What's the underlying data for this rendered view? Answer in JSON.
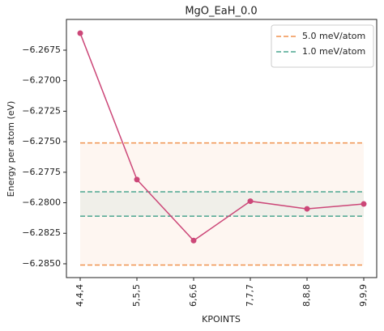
{
  "chart_data": {
    "type": "line",
    "title": "MgO_EaH_0.0",
    "x_label": "KPOINTS",
    "y_label": "Energy per atom (eV)",
    "categories": [
      "4,4,4",
      "5,5,5",
      "6,6,6",
      "7,7,7",
      "8,8,8",
      "9,9,9"
    ],
    "series": [
      {
        "color": "#cc4778",
        "values": [
          -6.26611,
          -6.2781,
          -6.2831,
          -6.27987,
          -6.2805,
          -6.2801
        ]
      }
    ],
    "reference_lines": [
      {
        "name": "5.0 meV/atom",
        "color": "#f0924e",
        "values": [
          -6.2751,
          -6.2851
        ]
      },
      {
        "name": "1.0 meV/atom",
        "color": "#4aa58f",
        "values": [
          -6.2791,
          -6.2811
        ]
      }
    ],
    "ylim": [
      -6.26498,
      -6.28613
    ],
    "yticks": [
      {
        "value": -6.2675,
        "label": "−6.2675"
      },
      {
        "value": -6.27,
        "label": "−6.2700"
      },
      {
        "value": -6.2725,
        "label": "−6.2725"
      },
      {
        "value": -6.275,
        "label": "−6.2750"
      },
      {
        "value": -6.2775,
        "label": "−6.2775"
      },
      {
        "value": -6.28,
        "label": "−6.2800"
      },
      {
        "value": -6.2825,
        "label": "−6.2825"
      },
      {
        "value": -6.285,
        "label": "−6.2850"
      }
    ],
    "legend": "upper right"
  }
}
